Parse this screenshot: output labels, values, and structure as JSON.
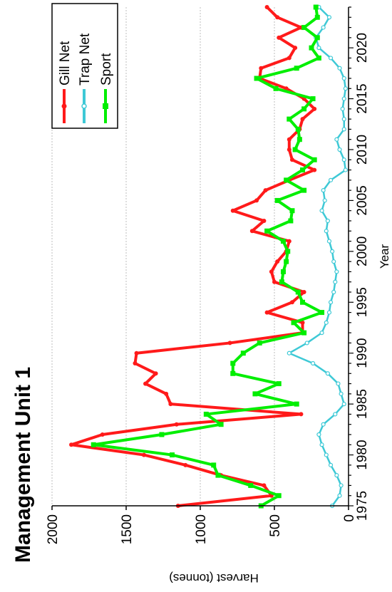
{
  "chart_data": {
    "type": "line",
    "title": "Management Unit 1",
    "xlabel": "Year",
    "ylabel": "Harvest (tonnes)",
    "xlim": [
      1975,
      2024
    ],
    "ylim": [
      0,
      2000
    ],
    "x_ticks": [
      1975,
      1980,
      1985,
      1990,
      1995,
      2000,
      2005,
      2010,
      2015,
      2020
    ],
    "y_ticks": [
      0,
      500,
      1000,
      1500,
      2000
    ],
    "grid": "horizontal-dashed",
    "legend_position": "top-right",
    "orientation": "rotated-90-ccw",
    "x": [
      1975,
      1976,
      1977,
      1978,
      1979,
      1980,
      1981,
      1982,
      1983,
      1984,
      1985,
      1986,
      1987,
      1988,
      1989,
      1990,
      1991,
      1992,
      1993,
      1994,
      1995,
      1996,
      1997,
      1998,
      1999,
      2000,
      2001,
      2002,
      2003,
      2004,
      2005,
      2006,
      2007,
      2008,
      2009,
      2010,
      2011,
      2012,
      2013,
      2014,
      2015,
      2016,
      2017,
      2018,
      2019,
      2020,
      2021,
      2022,
      2023,
      2024
    ],
    "series": [
      {
        "name": "Gill Net",
        "color": "#ff1a1a",
        "values": [
          1150,
          520,
          570,
          860,
          1100,
          1380,
          1870,
          1660,
          1160,
          320,
          1200,
          1230,
          1370,
          1300,
          1440,
          1430,
          800,
          310,
          310,
          550,
          380,
          300,
          500,
          520,
          480,
          420,
          400,
          650,
          570,
          780,
          620,
          560,
          400,
          230,
          380,
          400,
          400,
          330,
          310,
          230,
          300,
          420,
          600,
          590,
          400,
          360,
          470,
          320,
          480,
          550
        ]
      },
      {
        "name": "Trap Net",
        "color": "#3ec9d6",
        "values": [
          110,
          60,
          50,
          80,
          120,
          150,
          180,
          200,
          170,
          90,
          30,
          50,
          70,
          140,
          240,
          400,
          280,
          180,
          150,
          130,
          120,
          100,
          90,
          80,
          100,
          110,
          130,
          150,
          140,
          180,
          160,
          170,
          120,
          20,
          30,
          60,
          80,
          30,
          30,
          40,
          30,
          20,
          30,
          60,
          120,
          200,
          220,
          170,
          130,
          200
        ]
      },
      {
        "name": "Sport",
        "color": "#00ee00",
        "values": [
          590,
          470,
          660,
          880,
          910,
          1190,
          1720,
          1260,
          860,
          960,
          350,
          630,
          470,
          780,
          780,
          710,
          600,
          300,
          370,
          180,
          310,
          340,
          450,
          440,
          420,
          410,
          440,
          550,
          390,
          380,
          480,
          300,
          420,
          310,
          230,
          360,
          330,
          340,
          400,
          300,
          240,
          490,
          620,
          350,
          200,
          250,
          210,
          300,
          210,
          220
        ]
      }
    ]
  }
}
